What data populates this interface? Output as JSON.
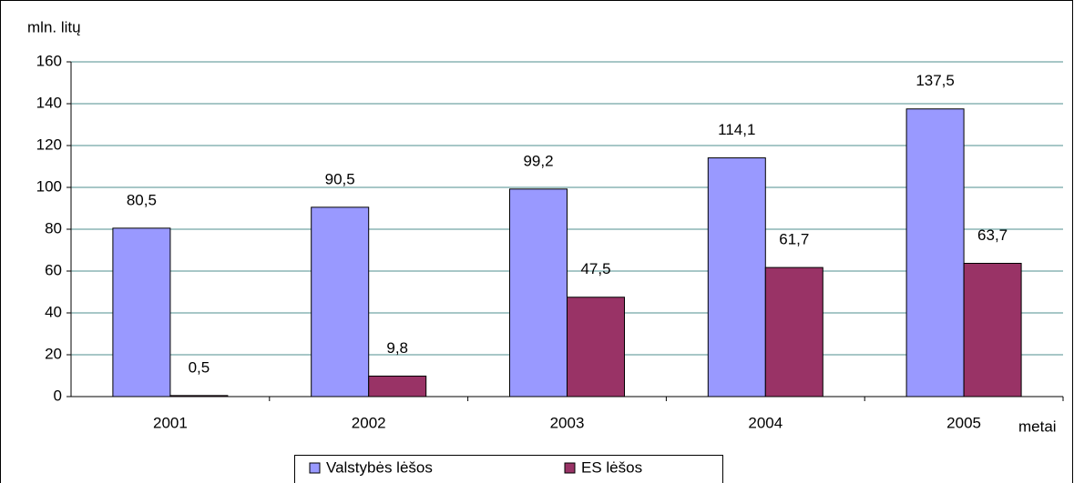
{
  "chart_data": {
    "type": "bar",
    "ylabel": "mln. litų",
    "xlabel": "metai",
    "categories": [
      "2001",
      "2002",
      "2003",
      "2004",
      "2005"
    ],
    "series": [
      {
        "name": "Valstybės lėšos",
        "color": "#9999ff",
        "values": [
          80.5,
          90.5,
          99.2,
          114.1,
          137.5
        ],
        "value_labels": [
          "80,5",
          "90,5",
          "99,2",
          "114,1",
          "137,5"
        ]
      },
      {
        "name": "ES lėšos",
        "color": "#993366",
        "values": [
          0.5,
          9.8,
          47.5,
          61.7,
          63.7
        ],
        "value_labels": [
          "0,5",
          "9,8",
          "47,5",
          "61,7",
          "63,7"
        ]
      }
    ],
    "ylim": [
      0,
      160
    ],
    "yticks": [
      0,
      20,
      40,
      60,
      80,
      100,
      120,
      140,
      160
    ],
    "grid": true,
    "legend": "bottom"
  }
}
